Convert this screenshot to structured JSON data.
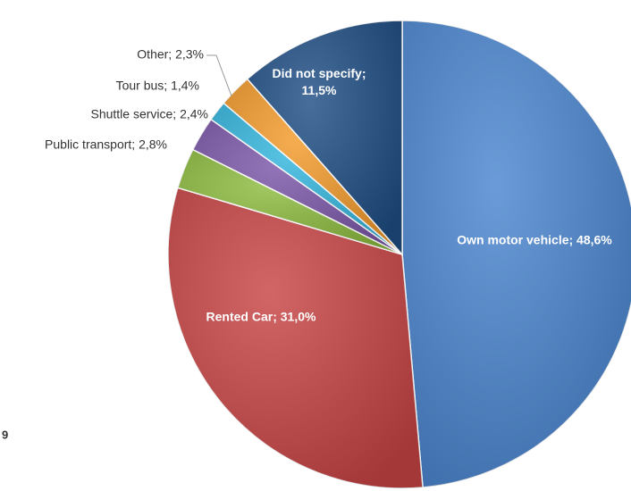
{
  "chart_data": {
    "type": "pie",
    "values": [
      48.6,
      31.0,
      2.8,
      2.4,
      1.4,
      2.3,
      11.5
    ],
    "value_labels": [
      "Own motor vehicle; 48,6%",
      "Rented Car; 31,0%",
      "Public transport; 2,8%",
      "Shuttle service; 2,4%",
      "Tour bus; 1,4%",
      "Other; 2,3%",
      "Did not specify; 11,5%"
    ],
    "colors": [
      "#4a86d0",
      "#c84343",
      "#8dbb3f",
      "#7a56a8",
      "#33b5dd",
      "#f39a2a",
      "#1f4e85"
    ]
  },
  "footer_text": "9"
}
